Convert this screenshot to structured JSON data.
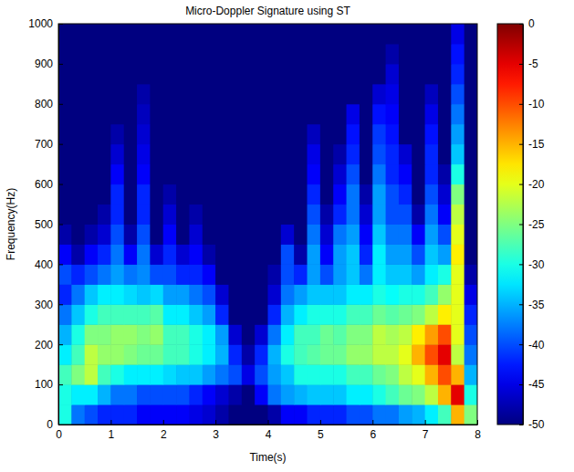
{
  "chart_data": {
    "type": "heatmap",
    "title": "Micro-Doppler Signature using ST",
    "x_label": "Time(s)",
    "y_label": "Frequency(Hz)",
    "x": [
      0.125,
      0.375,
      0.625,
      0.875,
      1.125,
      1.375,
      1.625,
      1.875,
      2.125,
      2.375,
      2.625,
      2.875,
      3.125,
      3.375,
      3.625,
      3.875,
      4.125,
      4.375,
      4.625,
      4.875,
      5.125,
      5.375,
      5.625,
      5.875,
      6.125,
      6.375,
      6.625,
      6.875,
      7.125,
      7.375,
      7.625,
      7.875
    ],
    "y": [
      25,
      75,
      125,
      175,
      225,
      275,
      325,
      375,
      425,
      475,
      525,
      575,
      625,
      675,
      725,
      775,
      825,
      875,
      925,
      975
    ],
    "z": [
      [
        -30,
        -38,
        -40,
        -42,
        -42,
        -42,
        -44,
        -44,
        -44,
        -44,
        -45,
        -46,
        -48,
        -50,
        -50,
        -50,
        -48,
        -44,
        -44,
        -42,
        -42,
        -42,
        -40,
        -40,
        -38,
        -38,
        -36,
        -35,
        -32,
        -28,
        -15,
        -25
      ],
      [
        -30,
        -32,
        -32,
        -35,
        -38,
        -38,
        -40,
        -40,
        -40,
        -40,
        -42,
        -44,
        -46,
        -48,
        -50,
        -44,
        -38,
        -36,
        -35,
        -34,
        -34,
        -34,
        -32,
        -32,
        -30,
        -28,
        -26,
        -25,
        -22,
        -15,
        -5,
        -30
      ],
      [
        -28,
        -25,
        -22,
        -28,
        -30,
        -32,
        -32,
        -32,
        -33,
        -34,
        -34,
        -36,
        -38,
        -40,
        -45,
        -40,
        -36,
        -34,
        -30,
        -30,
        -30,
        -30,
        -28,
        -28,
        -26,
        -25,
        -22,
        -20,
        -15,
        -10,
        -15,
        -35
      ],
      [
        -32,
        -28,
        -22,
        -24,
        -24,
        -25,
        -26,
        -26,
        -28,
        -28,
        -30,
        -32,
        -35,
        -42,
        -48,
        -42,
        -35,
        -30,
        -28,
        -27,
        -26,
        -26,
        -24,
        -24,
        -22,
        -22,
        -20,
        -15,
        -10,
        -5,
        -22,
        -38
      ],
      [
        -35,
        -30,
        -25,
        -25,
        -24,
        -24,
        -25,
        -24,
        -28,
        -28,
        -30,
        -32,
        -36,
        -46,
        -50,
        -46,
        -38,
        -32,
        -28,
        -28,
        -26,
        -27,
        -25,
        -25,
        -22,
        -23,
        -22,
        -18,
        -14,
        -10,
        -20,
        -40
      ],
      [
        -38,
        -34,
        -30,
        -28,
        -28,
        -28,
        -28,
        -27,
        -32,
        -32,
        -34,
        -36,
        -42,
        -50,
        -50,
        -50,
        -42,
        -35,
        -32,
        -30,
        -30,
        -30,
        -28,
        -28,
        -26,
        -27,
        -26,
        -25,
        -22,
        -18,
        -20,
        -42
      ],
      [
        -42,
        -38,
        -34,
        -32,
        -32,
        -33,
        -34,
        -33,
        -36,
        -36,
        -38,
        -40,
        -46,
        -50,
        -50,
        -50,
        -46,
        -38,
        -36,
        -34,
        -34,
        -34,
        -32,
        -32,
        -30,
        -31,
        -30,
        -30,
        -28,
        -24,
        -20,
        -45
      ],
      [
        -40,
        -42,
        -40,
        -38,
        -36,
        -38,
        -37,
        -40,
        -40,
        -42,
        -42,
        -44,
        -50,
        -50,
        -50,
        -50,
        -48,
        -40,
        -42,
        -36,
        -40,
        -36,
        -34,
        -38,
        -32,
        -34,
        -34,
        -36,
        -32,
        -30,
        -20,
        -48
      ],
      [
        -44,
        -48,
        -44,
        -42,
        -38,
        -44,
        -38,
        -46,
        -42,
        -46,
        -44,
        -48,
        -50,
        -50,
        -50,
        -50,
        -50,
        -40,
        -48,
        -36,
        -44,
        -36,
        -34,
        -42,
        -32,
        -36,
        -36,
        -40,
        -34,
        -36,
        -18,
        -50
      ],
      [
        -48,
        -50,
        -48,
        -46,
        -40,
        -48,
        -40,
        -50,
        -44,
        -50,
        -46,
        -50,
        -50,
        -50,
        -50,
        -50,
        -50,
        -46,
        -50,
        -38,
        -46,
        -38,
        -36,
        -44,
        -34,
        -38,
        -38,
        -44,
        -36,
        -40,
        -20,
        -50
      ],
      [
        -50,
        -50,
        -50,
        -48,
        -42,
        -50,
        -42,
        -50,
        -46,
        -50,
        -48,
        -50,
        -50,
        -50,
        -50,
        -50,
        -50,
        -50,
        -50,
        -40,
        -48,
        -42,
        -38,
        -46,
        -36,
        -40,
        -40,
        -48,
        -38,
        -44,
        -22,
        -50
      ],
      [
        -50,
        -50,
        -50,
        -50,
        -42,
        -50,
        -42,
        -50,
        -48,
        -50,
        -50,
        -50,
        -50,
        -50,
        -50,
        -50,
        -50,
        -50,
        -50,
        -42,
        -50,
        -44,
        -38,
        -48,
        -36,
        -40,
        -42,
        -50,
        -40,
        -46,
        -25,
        -50
      ],
      [
        -50,
        -50,
        -50,
        -50,
        -44,
        -50,
        -44,
        -50,
        -50,
        -50,
        -50,
        -50,
        -50,
        -50,
        -50,
        -50,
        -50,
        -50,
        -50,
        -44,
        -50,
        -46,
        -40,
        -50,
        -38,
        -42,
        -44,
        -50,
        -42,
        -48,
        -30,
        -50
      ],
      [
        -50,
        -50,
        -50,
        -50,
        -46,
        -50,
        -45,
        -50,
        -50,
        -50,
        -50,
        -50,
        -50,
        -50,
        -50,
        -50,
        -50,
        -50,
        -50,
        -45,
        -50,
        -48,
        -42,
        -50,
        -40,
        -42,
        -46,
        -50,
        -42,
        -50,
        -34,
        -50
      ],
      [
        -50,
        -50,
        -50,
        -50,
        -48,
        -50,
        -46,
        -50,
        -50,
        -50,
        -50,
        -50,
        -50,
        -50,
        -50,
        -50,
        -50,
        -50,
        -50,
        -47,
        -50,
        -50,
        -43,
        -50,
        -41,
        -43,
        -50,
        -50,
        -43,
        -50,
        -36,
        -50
      ],
      [
        -50,
        -50,
        -50,
        -50,
        -50,
        -50,
        -47,
        -50,
        -50,
        -50,
        -50,
        -50,
        -50,
        -50,
        -50,
        -50,
        -50,
        -50,
        -50,
        -50,
        -50,
        -50,
        -45,
        -50,
        -43,
        -44,
        -50,
        -50,
        -45,
        -50,
        -38,
        -50
      ],
      [
        -50,
        -50,
        -50,
        -50,
        -50,
        -50,
        -48,
        -50,
        -50,
        -50,
        -50,
        -50,
        -50,
        -50,
        -50,
        -50,
        -50,
        -50,
        -50,
        -50,
        -50,
        -50,
        -50,
        -50,
        -46,
        -45,
        -50,
        -50,
        -47,
        -50,
        -40,
        -50
      ],
      [
        -50,
        -50,
        -50,
        -50,
        -50,
        -50,
        -50,
        -50,
        -50,
        -50,
        -50,
        -50,
        -50,
        -50,
        -50,
        -50,
        -50,
        -50,
        -50,
        -50,
        -50,
        -50,
        -50,
        -50,
        -50,
        -46,
        -50,
        -50,
        -50,
        -50,
        -42,
        -50
      ],
      [
        -50,
        -50,
        -50,
        -50,
        -50,
        -50,
        -50,
        -50,
        -50,
        -50,
        -50,
        -50,
        -50,
        -50,
        -50,
        -50,
        -50,
        -50,
        -50,
        -50,
        -50,
        -50,
        -50,
        -50,
        -50,
        -48,
        -50,
        -50,
        -50,
        -50,
        -43,
        -50
      ],
      [
        -50,
        -50,
        -50,
        -50,
        -50,
        -50,
        -50,
        -50,
        -50,
        -50,
        -50,
        -50,
        -50,
        -50,
        -50,
        -50,
        -50,
        -50,
        -50,
        -50,
        -50,
        -50,
        -50,
        -50,
        -50,
        -50,
        -50,
        -50,
        -50,
        -50,
        -45,
        -50
      ]
    ],
    "xlim": [
      0,
      8
    ],
    "ylim": [
      0,
      1000
    ],
    "xticks": [
      0,
      1,
      2,
      3,
      4,
      5,
      6,
      7,
      8
    ],
    "yticks": [
      0,
      100,
      200,
      300,
      400,
      500,
      600,
      700,
      800,
      900,
      1000
    ],
    "colorbar": {
      "range": [
        -50,
        0
      ],
      "ticks": [
        0,
        -5,
        -10,
        -15,
        -20,
        -25,
        -30,
        -35,
        -40,
        -45,
        -50
      ]
    }
  }
}
